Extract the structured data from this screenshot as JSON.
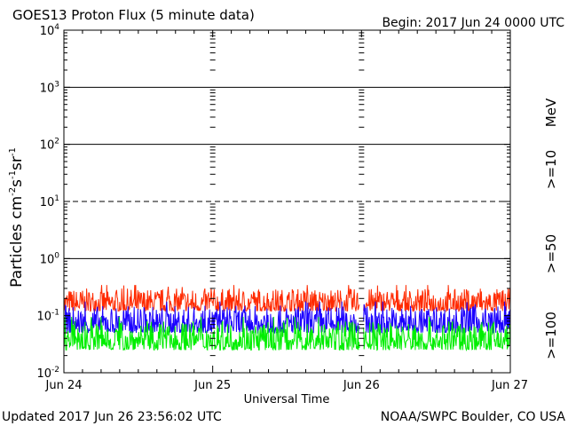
{
  "chart_data": {
    "type": "line",
    "title": "GOES13 Proton Flux (5 minute data)",
    "begin_label": "Begin: 2017 Jun 24 0000 UTC",
    "ylabel": {
      "base": "Particles cm",
      "exp1": "-2",
      "s": "s",
      "exp2": "-1",
      "sr": "sr",
      "exp3": "-1"
    },
    "xlabel": "Universal Time",
    "y_scale": "log",
    "ylim": [
      0.01,
      10000
    ],
    "y_ticks": [
      {
        "value": 0.01,
        "base": "10",
        "exp": "-2"
      },
      {
        "value": 0.1,
        "base": "10",
        "exp": "-1"
      },
      {
        "value": 1,
        "base": "10",
        "exp": "0"
      },
      {
        "value": 10,
        "base": "10",
        "exp": "1"
      },
      {
        "value": 100,
        "base": "10",
        "exp": "2"
      },
      {
        "value": 1000,
        "base": "10",
        "exp": "3"
      },
      {
        "value": 10000,
        "base": "10",
        "exp": "4"
      }
    ],
    "x_ticks": [
      "Jun 24",
      "Jun 25",
      "Jun 26",
      "Jun 27"
    ],
    "xlim_days": [
      0,
      3
    ],
    "thresholds": [
      {
        "value": 1,
        "style": "solid"
      },
      {
        "value": 10,
        "style": "dashed"
      },
      {
        "value": 100,
        "style": "solid"
      },
      {
        "value": 1000,
        "style": "solid"
      }
    ],
    "series": [
      {
        "name": ">=10",
        "color": "#ff2a00",
        "typical_range": [
          0.12,
          0.3
        ]
      },
      {
        "name": ">=50",
        "color": "#1a00ff",
        "typical_range": [
          0.05,
          0.15
        ]
      },
      {
        "name": ">=100",
        "color": "#00ee00",
        "typical_range": [
          0.025,
          0.08
        ]
      }
    ],
    "legend_unit": "MeV",
    "legend_placement": "right-vertical",
    "data_gap_day": 2.0
  },
  "footer": {
    "updated": "Updated 2017 Jun 26 23:56:02 UTC",
    "credit": "NOAA/SWPC Boulder, CO USA"
  }
}
